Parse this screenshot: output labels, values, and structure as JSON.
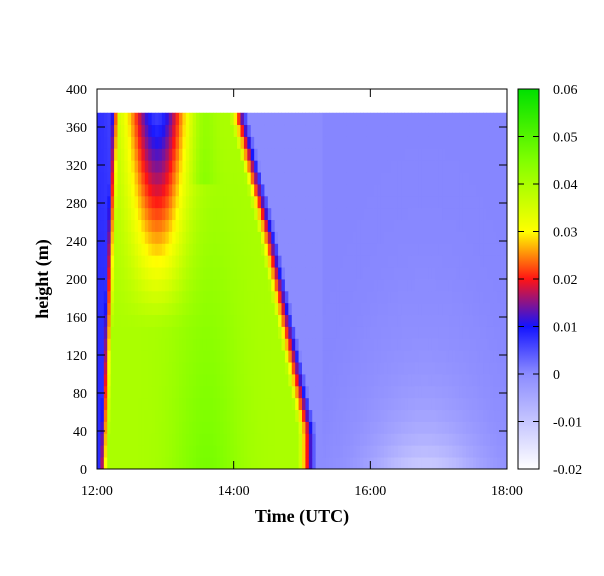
{
  "chart_data": {
    "type": "heatmap",
    "title": "",
    "xlabel": "Time (UTC)",
    "ylabel": "height (m)",
    "x_ticks": [
      "12:00",
      "14:00",
      "16:00",
      "18:00"
    ],
    "x_tick_values_hours": [
      12,
      14,
      16,
      18
    ],
    "xlim_hours": [
      12,
      18
    ],
    "y_ticks": [
      0,
      40,
      80,
      120,
      160,
      200,
      240,
      280,
      320,
      360,
      400
    ],
    "ylim": [
      0,
      400
    ],
    "data_top_height": 375,
    "colorbar": {
      "range": [
        -0.02,
        0.06
      ],
      "ticks": [
        "-0.02",
        "-0.01",
        "0",
        "0.01",
        "0.02",
        "0.03",
        "0.04",
        "0.05",
        "0.06"
      ],
      "tick_values": [
        -0.02,
        -0.01,
        0,
        0.01,
        0.02,
        0.03,
        0.04,
        0.05,
        0.06
      ],
      "stops": [
        {
          "value": -0.02,
          "color": "#ffffff"
        },
        {
          "value": 0.0,
          "color": "#8c8cff"
        },
        {
          "value": 0.01,
          "color": "#1414ff"
        },
        {
          "value": 0.02,
          "color": "#ff1414"
        },
        {
          "value": 0.03,
          "color": "#ffff00"
        },
        {
          "value": 0.045,
          "color": "#80ff00"
        },
        {
          "value": 0.06,
          "color": "#00e000"
        }
      ]
    }
  }
}
